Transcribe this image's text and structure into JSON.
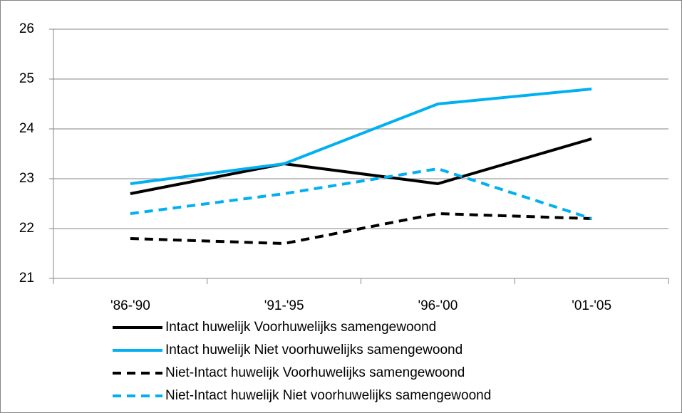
{
  "chart_data": {
    "type": "line",
    "categories": [
      "'86-'90",
      "'91-'95",
      "'96-'00",
      "'01-'05"
    ],
    "series": [
      {
        "name": "Intact huwelijk Voorhuwelijks samengewoond",
        "color": "#000000",
        "style": "solid",
        "values": [
          22.7,
          23.3,
          22.9,
          23.8
        ]
      },
      {
        "name": "Intact huwelijk Niet voorhuwelijks samengewoond",
        "color": "#00b0f0",
        "style": "solid",
        "values": [
          22.9,
          23.3,
          24.5,
          24.8
        ]
      },
      {
        "name": "Niet-Intact huwelijk Voorhuwelijks samengewoond",
        "color": "#000000",
        "style": "dashed",
        "values": [
          21.8,
          21.7,
          22.3,
          22.2
        ]
      },
      {
        "name": "Niet-Intact huwelijk Niet voorhuwelijks samengewoond",
        "color": "#00b0f0",
        "style": "dashed",
        "values": [
          22.3,
          22.7,
          23.2,
          22.2
        ]
      }
    ],
    "ylim": [
      21,
      26
    ],
    "yticks": [
      21,
      22,
      23,
      24,
      25,
      26
    ],
    "grid": true,
    "legend": "bottom"
  }
}
